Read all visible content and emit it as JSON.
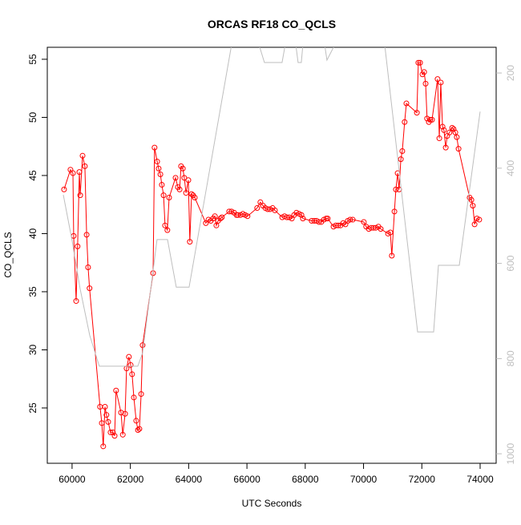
{
  "chart_data": {
    "type": "line",
    "title": "ORCAS RF18 CO_QCLS",
    "x_label": "UTC Seconds",
    "y_label": "CO_QCLS",
    "xlim": [
      59150,
      74550
    ],
    "xticks": [
      60000,
      62000,
      64000,
      66000,
      68000,
      70000,
      72000,
      74000
    ],
    "ylim": [
      20.24,
      56.03
    ],
    "yticks": [
      25,
      30,
      35,
      40,
      45,
      50,
      55
    ],
    "y2lim": [
      1020,
      146
    ],
    "y2ticks": [
      200,
      400,
      600,
      800,
      1000
    ],
    "series": [
      {
        "color": "#ff0000",
        "markers": true,
        "x": [
          59725,
          59945,
          60030,
          60055,
          60140,
          60190,
          60250,
          60280,
          60360,
          60440,
          60500,
          60550,
          60600,
          60960,
          61020,
          61070,
          61130,
          61180,
          61240,
          61320,
          61400,
          61460,
          61510,
          61680,
          61740,
          61820,
          61870,
          61950,
          62010,
          62060,
          62120,
          62200,
          62260,
          62310,
          62370,
          62420,
          62780,
          62830,
          62920,
          62970,
          63030,
          63080,
          63140,
          63190,
          63270,
          63330,
          63550,
          63630,
          63690,
          63740,
          63800,
          63850,
          63910,
          63990,
          64040,
          64100,
          64150,
          64210,
          64590,
          64680,
          64760,
          64840,
          64900,
          64950,
          65010,
          65090,
          65140,
          65390,
          65470,
          65560,
          65640,
          65690,
          65780,
          65860,
          65940,
          66020,
          66350,
          66460,
          66550,
          66630,
          66710,
          66790,
          66880,
          66960,
          67210,
          67290,
          67370,
          67450,
          67540,
          67620,
          67700,
          67790,
          67870,
          67920,
          68220,
          68310,
          68390,
          68470,
          68550,
          68640,
          68720,
          68770,
          68970,
          69050,
          69130,
          69210,
          69300,
          69380,
          69460,
          69540,
          69630,
          70010,
          70090,
          70180,
          70260,
          70340,
          70420,
          70510,
          70590,
          70840,
          70920,
          70970,
          71060,
          71110,
          71170,
          71220,
          71280,
          71330,
          71410,
          71470,
          71830,
          71880,
          71940,
          72020,
          72080,
          72130,
          72180,
          72240,
          72290,
          72350,
          72540,
          72600,
          72650,
          72710,
          72760,
          72820,
          72870,
          72950,
          73040,
          73090,
          73150,
          73200,
          73260,
          73640,
          73700,
          73750,
          73810,
          73890,
          73970
        ],
        "values": [
          43.8,
          45.5,
          45.2,
          39.8,
          34.2,
          38.9,
          45.3,
          43.3,
          46.7,
          45.8,
          39.9,
          37.1,
          35.3,
          25.1,
          23.7,
          21.7,
          25.1,
          24.4,
          23.8,
          22.9,
          22.9,
          22.6,
          26.5,
          24.6,
          22.7,
          24.5,
          28.4,
          29.4,
          28.7,
          27.9,
          25.9,
          23.9,
          23.1,
          23.2,
          26.2,
          30.4,
          36.6,
          47.4,
          46.2,
          45.6,
          45.1,
          44.2,
          43.3,
          40.7,
          40.3,
          43.1,
          44.8,
          44.0,
          43.8,
          45.8,
          45.6,
          44.8,
          43.5,
          44.6,
          39.3,
          43.4,
          43.3,
          43.1,
          40.9,
          41.2,
          41.1,
          41.3,
          41.5,
          40.7,
          41.1,
          41.3,
          41.4,
          41.9,
          41.9,
          41.8,
          41.6,
          41.6,
          41.6,
          41.7,
          41.6,
          41.5,
          42.2,
          42.7,
          42.4,
          42.2,
          42.1,
          42.1,
          42.2,
          42.0,
          41.4,
          41.5,
          41.4,
          41.4,
          41.3,
          41.6,
          41.8,
          41.7,
          41.6,
          41.3,
          41.1,
          41.1,
          41.1,
          41.0,
          41.0,
          41.2,
          41.3,
          41.3,
          40.6,
          40.7,
          40.7,
          40.7,
          40.9,
          40.8,
          41.1,
          41.2,
          41.2,
          41.0,
          40.6,
          40.4,
          40.5,
          40.5,
          40.5,
          40.6,
          40.4,
          40.0,
          40.1,
          38.1,
          41.9,
          43.8,
          45.2,
          43.8,
          46.4,
          47.1,
          49.6,
          51.2,
          50.4,
          54.7,
          54.7,
          53.7,
          53.9,
          52.9,
          49.9,
          49.6,
          49.8,
          49.8,
          53.3,
          48.2,
          53.0,
          49.2,
          48.9,
          47.4,
          48.4,
          48.7,
          49.1,
          49.0,
          48.7,
          48.3,
          47.3,
          43.1,
          42.9,
          42.4,
          40.8,
          41.3,
          41.2
        ]
      },
      {
        "color": "#bebebe",
        "axis": "y2",
        "markers": false,
        "x": [
          59700,
          60000,
          60275,
          60605,
          60935,
          62255,
          62420,
          62915,
          63275,
          63575,
          64015,
          65475,
          66410,
          66600,
          67205,
          67315,
          67675,
          67755,
          67865,
          67920,
          68665,
          68745,
          69020,
          70725,
          71855,
          72405,
          72570,
          73285,
          74000
        ],
        "values": [
          456,
          552,
          653,
          751,
          816,
          816,
          788,
          550,
          550,
          650,
          650,
          140,
          140,
          178,
          178,
          140,
          140,
          178,
          178,
          140,
          140,
          173,
          140,
          140,
          744,
          744,
          604,
          604,
          281
        ]
      }
    ]
  }
}
